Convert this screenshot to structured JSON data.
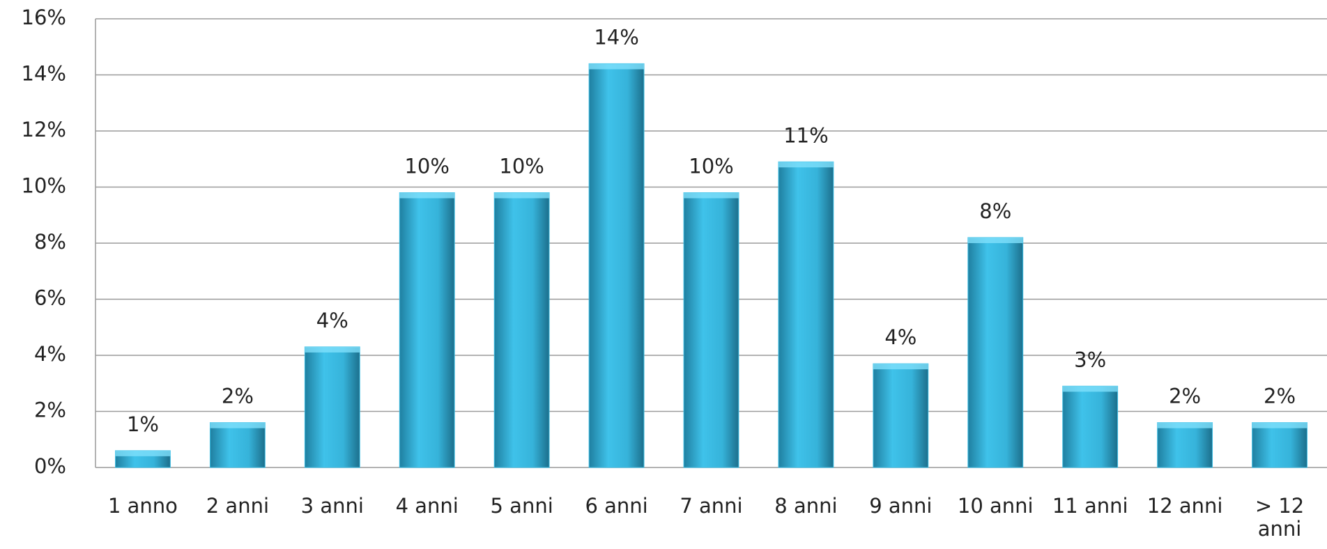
{
  "chart_data": {
    "type": "bar",
    "categories": [
      "1 anno",
      "2 anni",
      "3 anni",
      "4 anni",
      "5 anni",
      "6 anni",
      "7 anni",
      "8 anni",
      "9 anni",
      "10 anni",
      "11 anni",
      "12 anni",
      "> 12 anni"
    ],
    "values": [
      0.6,
      1.6,
      4.3,
      9.8,
      9.8,
      14.4,
      9.8,
      10.9,
      3.7,
      8.2,
      2.9,
      1.6,
      1.6
    ],
    "value_labels": [
      "1%",
      "2%",
      "4%",
      "10%",
      "10%",
      "14%",
      "10%",
      "11%",
      "4%",
      "8%",
      "3%",
      "2%",
      "2%"
    ],
    "color": "#3bbde3",
    "ylim": [
      0,
      16
    ],
    "yticks": [
      {
        "value": 0,
        "label": "0%"
      },
      {
        "value": 2,
        "label": "2%"
      },
      {
        "value": 4,
        "label": "4%"
      },
      {
        "value": 6,
        "label": "6%"
      },
      {
        "value": 8,
        "label": "8%"
      },
      {
        "value": 10,
        "label": "10%"
      },
      {
        "value": 12,
        "label": "12%"
      },
      {
        "value": 14,
        "label": "14%"
      },
      {
        "value": 16,
        "label": "16%"
      }
    ],
    "grid": true
  }
}
